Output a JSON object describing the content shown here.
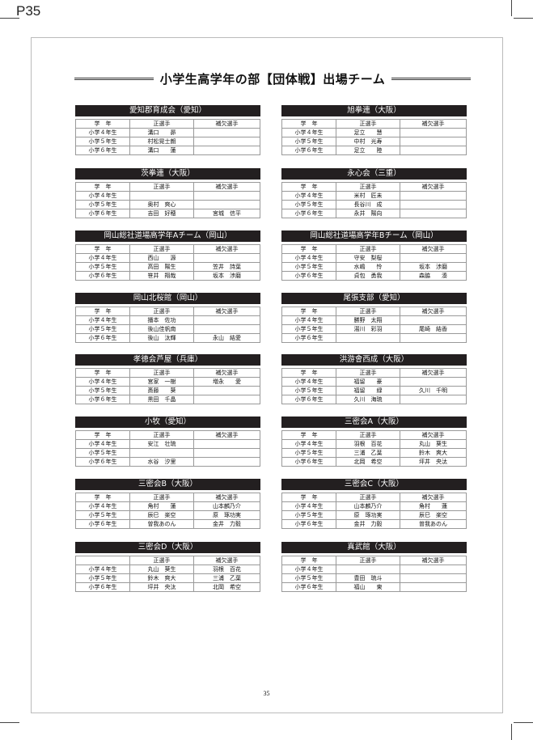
{
  "page_label": "P35",
  "title": "小学生高学年の部【団体戦】出場チーム",
  "page_number": "35",
  "header_row": [
    "学　年",
    "正選手",
    "補欠選手"
  ],
  "grades": [
    "小学４年生",
    "小学５年生",
    "小学６年生"
  ],
  "teams": [
    {
      "name": "愛知郡育成会（愛知）",
      "main": [
        "溝口　　昴",
        "村松晃士朗",
        "溝口　　蓮"
      ],
      "sub": [
        "",
        "",
        ""
      ]
    },
    {
      "name": "旭拳連（大阪）",
      "main": [
        "足立　　慧",
        "中村　光寿",
        "足立　　陸"
      ],
      "sub": [
        "",
        "",
        ""
      ]
    },
    {
      "name": "茨拳連（大阪）",
      "main": [
        "",
        "奥村　爽心",
        "吉田　好穂"
      ],
      "sub": [
        "",
        "",
        "宮城　信平"
      ]
    },
    {
      "name": "永心会（三重）",
      "main": [
        "米村　匠未",
        "長谷川　成",
        "永井　陽向"
      ],
      "sub": [
        "",
        "",
        ""
      ]
    },
    {
      "name": "岡山総社道場高学年Aチーム（岡山）",
      "main": [
        "西山　　源",
        "高田　陽生",
        "笹井　翔哉"
      ],
      "sub": [
        "",
        "笠井　詩葉",
        "坂本　渉磨"
      ]
    },
    {
      "name": "岡山総社道場高学年Bチーム（岡山）",
      "main": [
        "守安　梨桜",
        "水嶋　　怜",
        "貞包　勇我"
      ],
      "sub": [
        "",
        "坂本　涉磨",
        "森脇　　湊"
      ]
    },
    {
      "name": "岡山北桜館（岡山）",
      "main": [
        "播本　佐功",
        "後山佳帆南",
        "後山　汰輝"
      ],
      "sub": [
        "",
        "",
        "永山　結愛"
      ]
    },
    {
      "name": "尾張支部（愛知）",
      "main": [
        "勝野　太翔",
        "湯川　彩羽",
        ""
      ],
      "sub": [
        "",
        "尾崎　結香",
        ""
      ]
    },
    {
      "name": "孝徳会芦屋（兵庫）",
      "main": [
        "宮家　一樹",
        "斎藤　　葵",
        "黒田　千晶"
      ],
      "sub": [
        "増永　　愛",
        "",
        ""
      ]
    },
    {
      "name": "洪游會西成（大阪）",
      "main": [
        "福留　　豪",
        "福留　　緑",
        "久川　海琉"
      ],
      "sub": [
        "",
        "久川　千明",
        ""
      ]
    },
    {
      "name": "小牧（愛知）",
      "main": [
        "安江　壮琉",
        "",
        "水谷　汐里"
      ],
      "sub": [
        "",
        "",
        ""
      ]
    },
    {
      "name": "三密会A（大阪）",
      "main": [
        "羽根　百花",
        "三浦　乙葉",
        "北岡　希空"
      ],
      "sub": [
        "丸山　葵生",
        "鈴木　爽大",
        "坪井　央汰"
      ]
    },
    {
      "name": "三密会B（大阪）",
      "main": [
        "角村　　蓮",
        "辰巳　楽空",
        "曽我あのん"
      ],
      "sub": [
        "山本麟乃介",
        "原　琢功実",
        "金井　力毅"
      ]
    },
    {
      "name": "三密会C（大阪）",
      "main": [
        "山本麟乃介",
        "原　琢功実",
        "金井　力毅"
      ],
      "sub": [
        "角村　　蓮",
        "辰巳　楽空",
        "曽我あのん"
      ]
    },
    {
      "name": "三密会D（大阪）",
      "header_grade": "",
      "main": [
        "丸山　葵生",
        "鈴木　爽大",
        "坪井　央汰"
      ],
      "sub": [
        "羽根　百花",
        "三浦　乙葉",
        "北岡　希空"
      ]
    },
    {
      "name": "真武館（大阪）",
      "main": [
        "",
        "豊田　琉斗",
        "福山　　東"
      ],
      "sub": [
        "",
        "",
        ""
      ]
    }
  ]
}
